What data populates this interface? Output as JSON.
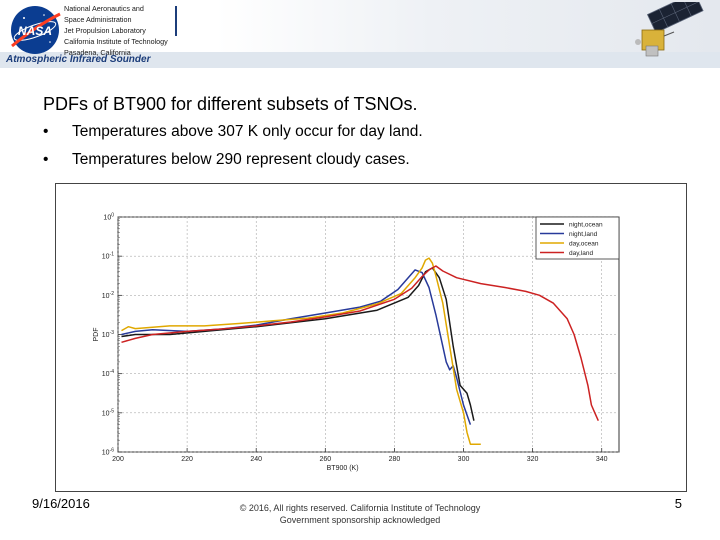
{
  "header": {
    "org_lines": [
      "National Aeronautics and",
      "Space Administration",
      "Jet Propulsion Laboratory",
      "California Institute of Technology",
      "Pasadena, California"
    ],
    "logo_text": "NASA",
    "subtitle": "Atmospheric Infrared Sounder",
    "logo_icon": "nasa-meatball-logo",
    "satellite_icon": "aqua-satellite-icon"
  },
  "slide": {
    "title": "PDFs of BT900 for different subsets of TSNOs.",
    "bullet_char": "•",
    "bullets": [
      "Temperatures above 307 K only occur for day land.",
      "Temperatures below 290 represent cloudy cases."
    ]
  },
  "chart_data": {
    "type": "line",
    "title": "",
    "xlabel": "BT900 (K)",
    "ylabel": "PDF",
    "xlim": [
      200,
      345
    ],
    "y_log_exponent_range": [
      -6,
      0
    ],
    "x_ticks": [
      "200",
      "220",
      "240",
      "260",
      "280",
      "300",
      "320",
      "340"
    ],
    "y_ticks": [
      "10^0",
      "10^-1",
      "10^-2",
      "10^-3",
      "10^-4",
      "10^-5",
      "10^-6"
    ],
    "legend_position": "top-right",
    "grid": true,
    "series": [
      {
        "name": "night,ocean",
        "color": "#1a1a1a",
        "points": [
          [
            201,
            -3.05
          ],
          [
            205,
            -3.0
          ],
          [
            215,
            -3.0
          ],
          [
            225,
            -2.92
          ],
          [
            240,
            -2.8
          ],
          [
            260,
            -2.6
          ],
          [
            275,
            -2.38
          ],
          [
            284,
            -2.05
          ],
          [
            287,
            -1.75
          ],
          [
            289,
            -1.4
          ],
          [
            291,
            -1.3
          ],
          [
            293,
            -1.55
          ],
          [
            295,
            -2.1
          ],
          [
            297,
            -3.3
          ],
          [
            299,
            -4.3
          ],
          [
            301,
            -4.5
          ],
          [
            302,
            -4.8
          ],
          [
            303,
            -5.2
          ]
        ]
      },
      {
        "name": "night,land",
        "color": "#283a9a",
        "points": [
          [
            201,
            -3.0
          ],
          [
            205,
            -2.92
          ],
          [
            210,
            -2.88
          ],
          [
            220,
            -2.92
          ],
          [
            230,
            -2.86
          ],
          [
            240,
            -2.76
          ],
          [
            250,
            -2.6
          ],
          [
            260,
            -2.45
          ],
          [
            270,
            -2.3
          ],
          [
            276,
            -2.15
          ],
          [
            281,
            -1.85
          ],
          [
            284,
            -1.55
          ],
          [
            286,
            -1.35
          ],
          [
            288,
            -1.42
          ],
          [
            290,
            -1.8
          ],
          [
            292,
            -2.5
          ],
          [
            294,
            -3.3
          ],
          [
            295,
            -3.7
          ],
          [
            296,
            -3.9
          ],
          [
            297,
            -3.8
          ],
          [
            298,
            -4.1
          ],
          [
            300,
            -4.8
          ],
          [
            302,
            -5.3
          ]
        ]
      },
      {
        "name": "day,ocean",
        "color": "#e0a800",
        "points": [
          [
            201,
            -2.9
          ],
          [
            203,
            -2.8
          ],
          [
            205,
            -2.85
          ],
          [
            215,
            -2.78
          ],
          [
            225,
            -2.78
          ],
          [
            235,
            -2.72
          ],
          [
            245,
            -2.65
          ],
          [
            255,
            -2.58
          ],
          [
            265,
            -2.45
          ],
          [
            275,
            -2.22
          ],
          [
            282,
            -1.95
          ],
          [
            286,
            -1.55
          ],
          [
            288,
            -1.3
          ],
          [
            289,
            -1.1
          ],
          [
            290,
            -1.05
          ],
          [
            291,
            -1.18
          ],
          [
            292,
            -1.5
          ],
          [
            294,
            -2.2
          ],
          [
            296,
            -3.3
          ],
          [
            298,
            -4.4
          ],
          [
            300,
            -5.0
          ],
          [
            301,
            -5.5
          ],
          [
            302,
            -5.8
          ],
          [
            305,
            -5.8
          ]
        ]
      },
      {
        "name": "day,land",
        "color": "#cc2222",
        "points": [
          [
            201,
            -3.2
          ],
          [
            205,
            -3.1
          ],
          [
            210,
            -3.0
          ],
          [
            220,
            -2.92
          ],
          [
            230,
            -2.86
          ],
          [
            240,
            -2.78
          ],
          [
            250,
            -2.68
          ],
          [
            260,
            -2.55
          ],
          [
            270,
            -2.4
          ],
          [
            280,
            -2.1
          ],
          [
            285,
            -1.82
          ],
          [
            288,
            -1.52
          ],
          [
            290,
            -1.35
          ],
          [
            292,
            -1.25
          ],
          [
            294,
            -1.38
          ],
          [
            298,
            -1.55
          ],
          [
            305,
            -1.7
          ],
          [
            312,
            -1.8
          ],
          [
            318,
            -1.9
          ],
          [
            322,
            -2.0
          ],
          [
            326,
            -2.2
          ],
          [
            330,
            -2.6
          ],
          [
            332,
            -3.0
          ],
          [
            334,
            -3.6
          ],
          [
            336,
            -4.3
          ],
          [
            337,
            -4.8
          ],
          [
            338,
            -5.0
          ],
          [
            339,
            -5.2
          ]
        ]
      }
    ]
  },
  "footer": {
    "date": "9/16/2016",
    "copyright_lines": [
      "© 2016, All rights reserved. California Institute of Technology",
      "Government sponsorship acknowledged"
    ],
    "page": "5"
  }
}
